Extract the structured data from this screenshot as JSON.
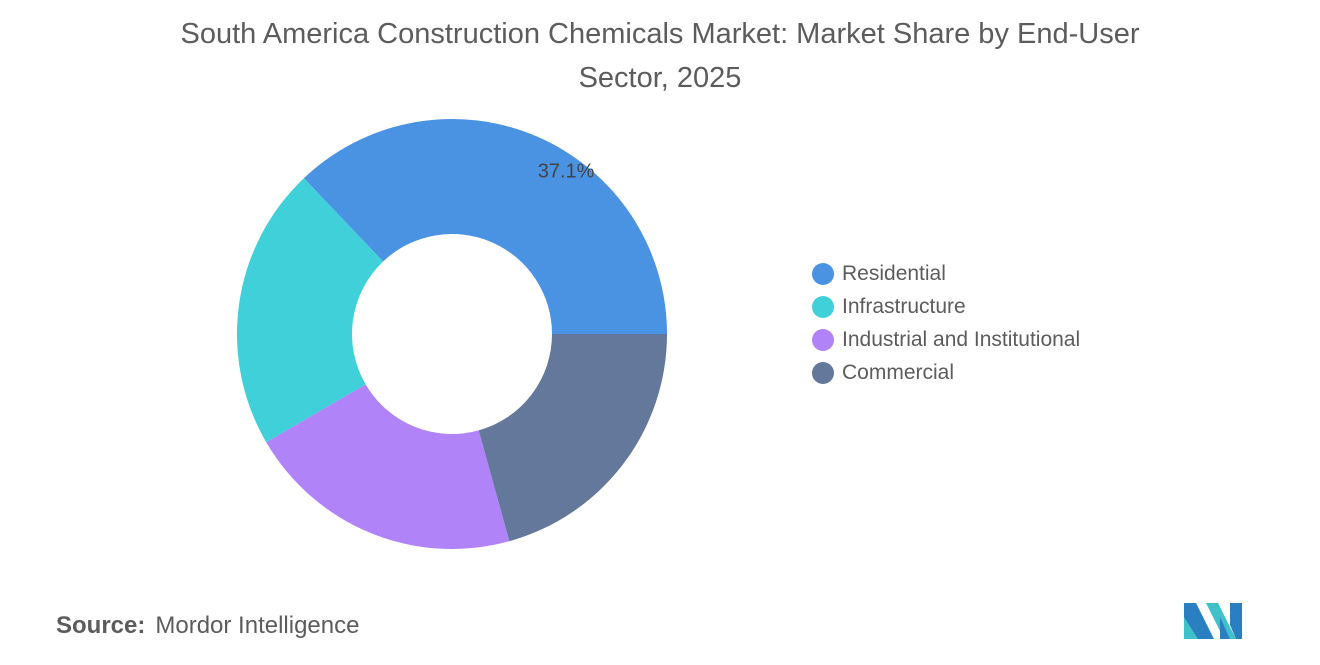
{
  "chart_data": {
    "type": "pie",
    "variant": "donut",
    "title": "South America Construction Chemicals Market: Market Share by End-User Sector, 2025",
    "categories": [
      "Residential",
      "Infrastructure",
      "Industrial and Institutional",
      "Commercial"
    ],
    "values": [
      37.1,
      21.3,
      20.9,
      20.7
    ],
    "unit": "%",
    "data_labels": [
      "37.1%",
      "",
      "",
      ""
    ],
    "colors": [
      "#4a93e3",
      "#3fd0d9",
      "#b083f9",
      "#64789b"
    ],
    "legend_position": "right"
  },
  "source": {
    "label": "Source:",
    "text": "Mordor Intelligence"
  },
  "logo": {
    "colors": [
      "#2a7fc1",
      "#3fc1c9"
    ]
  }
}
